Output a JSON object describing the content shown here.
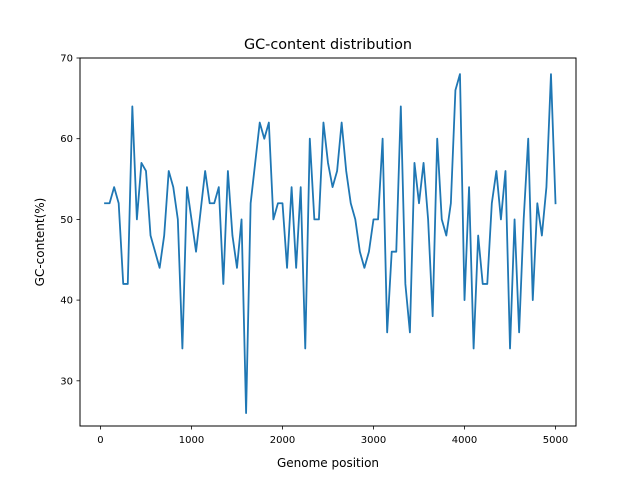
{
  "chart_data": {
    "type": "line",
    "title": "GC-content distribution",
    "xlabel": "Genome position",
    "ylabel": "GC-content(%)",
    "xlim": [
      -225,
      5225
    ],
    "ylim": [
      24.4,
      70
    ],
    "xticks": [
      0,
      1000,
      2000,
      3000,
      4000,
      5000
    ],
    "yticks": [
      30,
      40,
      50,
      60,
      70
    ],
    "grid": false,
    "legend": "none",
    "line_color": "#1f77b4",
    "x": [
      50,
      100,
      150,
      200,
      250,
      300,
      350,
      400,
      450,
      500,
      550,
      600,
      650,
      700,
      750,
      800,
      850,
      900,
      950,
      1000,
      1050,
      1100,
      1150,
      1200,
      1250,
      1300,
      1350,
      1400,
      1450,
      1500,
      1550,
      1600,
      1650,
      1700,
      1750,
      1800,
      1850,
      1900,
      1950,
      2000,
      2050,
      2100,
      2150,
      2200,
      2250,
      2300,
      2350,
      2400,
      2450,
      2500,
      2550,
      2600,
      2650,
      2700,
      2750,
      2800,
      2850,
      2900,
      2950,
      3000,
      3050,
      3100,
      3150,
      3200,
      3250,
      3300,
      3350,
      3400,
      3450,
      3500,
      3550,
      3600,
      3650,
      3700,
      3750,
      3800,
      3850,
      3900,
      3950,
      4000,
      4050,
      4100,
      4150,
      4200,
      4250,
      4300,
      4350,
      4400,
      4450,
      4500,
      4550,
      4600,
      4650,
      4700,
      4750,
      4800,
      4850,
      4900,
      4950,
      5000
    ],
    "series": [
      {
        "values": [
          52,
          52,
          54,
          52,
          42,
          42,
          64,
          50,
          57,
          56,
          48,
          46,
          44,
          48,
          56,
          54,
          50,
          34,
          54,
          50,
          46,
          51,
          56,
          52,
          52,
          54,
          42,
          56,
          48,
          44,
          50,
          26,
          52,
          57,
          62,
          60,
          62,
          50,
          52,
          52,
          44,
          54,
          44,
          54,
          34,
          60,
          50,
          50,
          62,
          57,
          54,
          56,
          62,
          56,
          52,
          50,
          46,
          44,
          46,
          50,
          50,
          60,
          36,
          46,
          46,
          64,
          42,
          36,
          57,
          52,
          57,
          50,
          38,
          60,
          50,
          48,
          52,
          66,
          68,
          40,
          54,
          34,
          48,
          42,
          42,
          52,
          56,
          50,
          56,
          34,
          50,
          36,
          50,
          60,
          40,
          52,
          48,
          54,
          68,
          52
        ]
      }
    ]
  }
}
